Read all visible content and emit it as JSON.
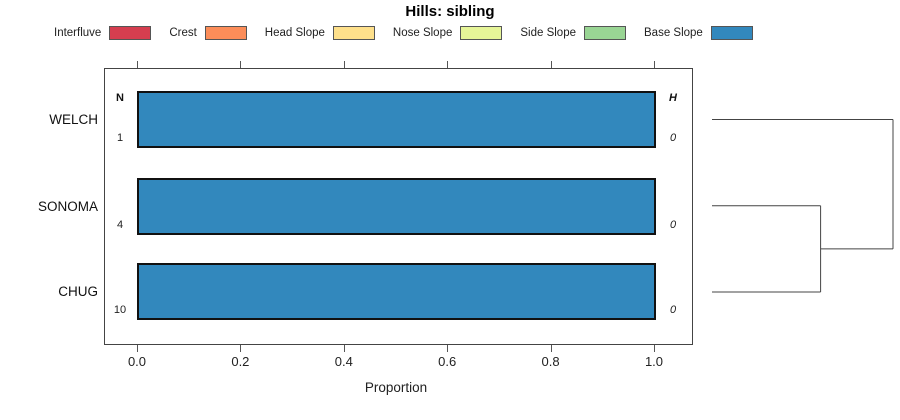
{
  "title": "Hills: sibling",
  "legend": {
    "items": [
      {
        "label": "Interfluve",
        "color": "#D53E4F"
      },
      {
        "label": "Crest",
        "color": "#FC8D59"
      },
      {
        "label": "Head Slope",
        "color": "#FEE08B"
      },
      {
        "label": "Nose Slope",
        "color": "#E6F598"
      },
      {
        "label": "Side Slope",
        "color": "#99D594"
      },
      {
        "label": "Base Slope",
        "color": "#3288BD"
      }
    ]
  },
  "chart_data": {
    "type": "bar",
    "orientation": "horizontal",
    "title": "Hills: sibling",
    "xlabel": "Proportion",
    "xlim": [
      0.0,
      1.0
    ],
    "x_ticks": [
      "0.0",
      "0.2",
      "0.4",
      "0.6",
      "0.8",
      "1.0"
    ],
    "grid": false,
    "legend_position": "top",
    "categories": [
      "WELCH",
      "SONOMA",
      "CHUG"
    ],
    "series": [
      {
        "name": "Base Slope",
        "color": "#3288BD",
        "values": [
          1.0,
          1.0,
          1.0
        ]
      }
    ],
    "columns": {
      "n": {
        "header": "N",
        "values": [
          "1",
          "4",
          "10"
        ]
      },
      "h": {
        "header": "H",
        "values": [
          "0",
          "0",
          "0"
        ]
      }
    },
    "dendrogram": {
      "description": "SONOMA and CHUG cluster first, that cluster then joins WELCH",
      "leaf_order": [
        "WELCH",
        "SONOMA",
        "CHUG"
      ],
      "segments": [
        {
          "x1": 0.0,
          "r1": 0,
          "x2": 1.0,
          "r2": 0
        },
        {
          "x1": 0.0,
          "r1": 1,
          "x2": 0.6,
          "r2": 1
        },
        {
          "x1": 0.0,
          "r1": 2,
          "x2": 0.6,
          "r2": 2
        },
        {
          "x1": 0.6,
          "r1": 1,
          "x2": 0.6,
          "r2": 2
        },
        {
          "x1": 0.6,
          "r1": 1.5,
          "x2": 1.0,
          "r2": 1.5
        },
        {
          "x1": 1.0,
          "r1": 0,
          "x2": 1.0,
          "r2": 1.5
        }
      ]
    }
  }
}
